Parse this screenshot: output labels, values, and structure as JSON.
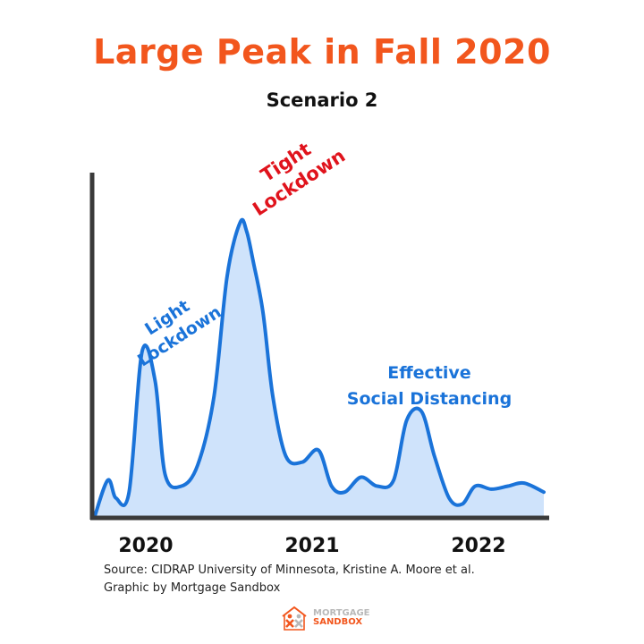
{
  "title": "Large Peak in Fall 2020",
  "subtitle": "Scenario 2",
  "chart_data": {
    "type": "area",
    "title": "Large Peak in Fall 2020",
    "subtitle": "Scenario 2",
    "xlabel": "",
    "ylabel": "",
    "xlim": [
      2019.67,
      2022.42
    ],
    "ylim": [
      0,
      100
    ],
    "x_ticks": [
      "2020",
      "2021",
      "2022"
    ],
    "x_tick_values": [
      2020.0,
      2021.0,
      2022.0
    ],
    "grid": false,
    "series": [
      {
        "name": "Scenario 2",
        "x": [
          2019.67,
          2019.75,
          2019.8,
          2019.88,
          2019.96,
          2020.04,
          2020.1,
          2020.2,
          2020.3,
          2020.4,
          2020.48,
          2020.56,
          2020.6,
          2020.64,
          2020.7,
          2020.76,
          2020.84,
          2020.94,
          2021.04,
          2021.12,
          2021.2,
          2021.3,
          2021.4,
          2021.5,
          2021.58,
          2021.67,
          2021.75,
          2021.84,
          2021.92,
          2022.0,
          2022.1,
          2022.2,
          2022.3,
          2022.42
        ],
        "values": [
          0,
          12,
          6,
          8,
          55,
          45,
          14,
          10,
          17,
          40,
          80,
          98,
          95,
          85,
          68,
          40,
          20,
          18,
          22,
          10,
          8,
          13,
          10,
          12,
          32,
          35,
          20,
          6,
          4,
          10,
          9,
          10,
          11,
          8
        ]
      }
    ],
    "annotations": [
      {
        "text": "Light\nLockdown",
        "x": 2020.1,
        "color": "#1a73d9"
      },
      {
        "text": "Tight\nLockdown",
        "x": 2020.62,
        "color": "#e0131c"
      },
      {
        "text": "Effective\nSocial Distancing",
        "x": 2021.85,
        "color": "#1a73d9"
      }
    ]
  },
  "annotations": {
    "light_1": "Light",
    "light_2": "Lockdown",
    "tight_1": "Tight",
    "tight_2": "Lockdown",
    "effective_1": "Effective",
    "effective_2": "Social Distancing"
  },
  "source": {
    "line1": "Source: CIDRAP University of Minnesota, Kristine A. Moore et al.",
    "line2": "Graphic by Mortgage Sandbox"
  },
  "logo": {
    "line1": "MORTGAGE",
    "line2": "SANDBOX"
  },
  "colors": {
    "title": "#f2561d",
    "curve": "#1a73d9",
    "fill": "#cfe3fb",
    "axis": "#3a3a3a",
    "tight": "#e0131c"
  }
}
